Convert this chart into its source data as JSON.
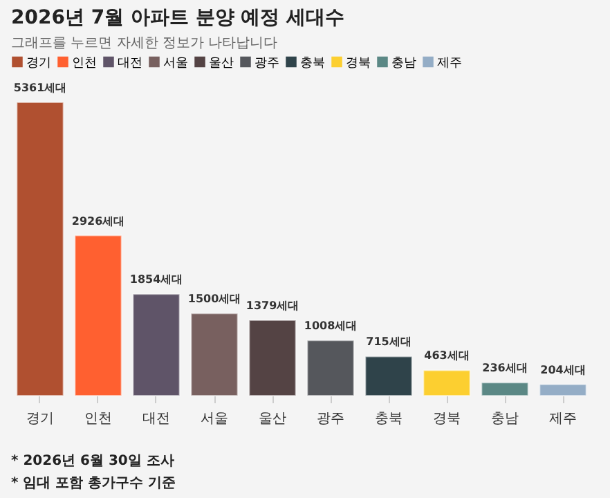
{
  "chart_data": {
    "type": "bar",
    "title": "2026년 7월 아파트 분양 예정 세대수",
    "subtitle": "그래프를 누르면 자세한 정보가 나타납니다",
    "categories": [
      "경기",
      "인천",
      "대전",
      "서울",
      "울산",
      "광주",
      "충북",
      "경북",
      "충남",
      "제주"
    ],
    "stacked": true,
    "series": [
      {
        "name": "경기",
        "color": "#b05030",
        "values": [
          5361,
          null,
          null,
          null,
          null,
          null,
          null,
          null,
          null,
          null
        ],
        "value_labels": [
          "5361세대",
          null,
          null,
          null,
          null,
          null,
          null,
          null,
          null,
          null
        ]
      },
      {
        "name": "인천",
        "color": "#ff6030",
        "values": [
          null,
          2926,
          null,
          null,
          null,
          null,
          null,
          null,
          null,
          null
        ],
        "value_labels": [
          null,
          "2926세대",
          null,
          null,
          null,
          null,
          null,
          null,
          null,
          null
        ]
      },
      {
        "name": "대전",
        "color": "#5f5468",
        "values": [
          null,
          null,
          1854,
          null,
          null,
          null,
          null,
          null,
          null,
          null
        ],
        "value_labels": [
          null,
          null,
          "1854세대",
          null,
          null,
          null,
          null,
          null,
          null,
          null
        ]
      },
      {
        "name": "서울",
        "color": "#78605f",
        "values": [
          null,
          null,
          null,
          1500,
          null,
          null,
          null,
          null,
          null,
          null
        ],
        "value_labels": [
          null,
          null,
          null,
          "1500세대",
          null,
          null,
          null,
          null,
          null,
          null
        ]
      },
      {
        "name": "울산",
        "color": "#544344",
        "values": [
          null,
          null,
          null,
          null,
          1379,
          null,
          null,
          null,
          null,
          null
        ],
        "value_labels": [
          null,
          null,
          null,
          null,
          "1379세대",
          null,
          null,
          null,
          null,
          null
        ]
      },
      {
        "name": "광주",
        "color": "#55575c",
        "values": [
          null,
          null,
          null,
          null,
          null,
          1008,
          null,
          null,
          null,
          null
        ],
        "value_labels": [
          null,
          null,
          null,
          null,
          null,
          "1008세대",
          null,
          null,
          null,
          null
        ]
      },
      {
        "name": "충북",
        "color": "#2f434a",
        "values": [
          null,
          null,
          null,
          null,
          null,
          null,
          715,
          null,
          null,
          null
        ],
        "value_labels": [
          null,
          null,
          null,
          null,
          null,
          null,
          "715세대",
          null,
          null,
          null
        ]
      },
      {
        "name": "경북",
        "color": "#fccf30",
        "values": [
          null,
          null,
          null,
          null,
          null,
          null,
          null,
          463,
          null,
          null
        ],
        "value_labels": [
          null,
          null,
          null,
          null,
          null,
          null,
          null,
          "463세대",
          null,
          null
        ]
      },
      {
        "name": "충남",
        "color": "#5b8885",
        "values": [
          null,
          null,
          null,
          null,
          null,
          null,
          null,
          null,
          236,
          null
        ],
        "value_labels": [
          null,
          null,
          null,
          null,
          null,
          null,
          null,
          null,
          "236세대",
          null
        ]
      },
      {
        "name": "제주",
        "color": "#94adc6",
        "values": [
          null,
          null,
          null,
          null,
          null,
          null,
          null,
          null,
          null,
          204
        ],
        "value_labels": [
          null,
          null,
          null,
          null,
          null,
          null,
          null,
          null,
          null,
          "204세대"
        ]
      }
    ],
    "legend": "top left",
    "grid": false,
    "annotations": [
      "* 2026년 6월 30일 조사",
      "* 임대 포함 총가구수 기준"
    ]
  }
}
